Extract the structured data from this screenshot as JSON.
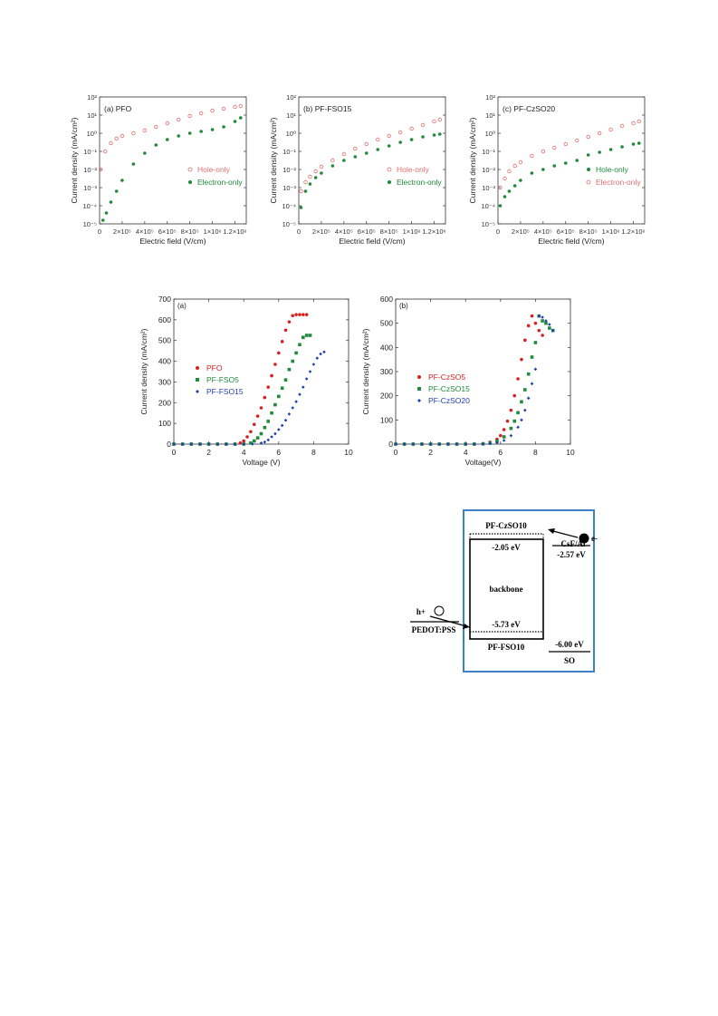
{
  "colors": {
    "hole": "#e07070",
    "electron": "#1f8a3a",
    "red": "#d62020",
    "green": "#1f8a3a",
    "blue": "#2040b0",
    "frame": "#3b82c4"
  },
  "row1": {
    "x_ticks": [
      "0",
      "2×10⁵",
      "4×10⁵",
      "6×10⁵",
      "8×10⁵",
      "1×10⁶",
      "1.2×10⁶"
    ],
    "y_ticks": [
      "10²",
      "10¹",
      "10⁰",
      "10⁻¹",
      "10⁻²",
      "10⁻³",
      "10⁻⁴",
      "10⁻⁵"
    ],
    "xlabel": "Electric field (V/cm)",
    "ylabel": "Current density (mA/cm²)"
  },
  "chart_data": [
    {
      "type": "scatter",
      "panel": "(a) PFO",
      "xlabel": "Electric field (V/cm)",
      "ylabel": "Current density (mA/cm²)",
      "xlim": [
        0,
        1300000
      ],
      "ylim": [
        -5,
        2
      ],
      "y_scale": "log",
      "legend_position": "right",
      "series": [
        {
          "name": "Hole-only",
          "marker": "open-circle",
          "color": "#e07070",
          "x": [
            10000,
            50000,
            100000,
            150000,
            200000,
            300000,
            400000,
            500000,
            600000,
            700000,
            800000,
            900000,
            1000000,
            1100000,
            1200000,
            1250000
          ],
          "y": [
            -2.0,
            -1.0,
            -0.55,
            -0.3,
            -0.15,
            0.0,
            0.15,
            0.35,
            0.55,
            0.75,
            0.95,
            1.1,
            1.25,
            1.35,
            1.45,
            1.5
          ]
        },
        {
          "name": "Electron-only",
          "marker": "filled-circle",
          "color": "#1f8a3a",
          "x": [
            30000,
            60000,
            100000,
            150000,
            200000,
            300000,
            400000,
            500000,
            600000,
            700000,
            800000,
            900000,
            1000000,
            1100000,
            1200000,
            1250000
          ],
          "y": [
            -4.8,
            -4.4,
            -3.8,
            -3.2,
            -2.6,
            -1.7,
            -1.1,
            -0.65,
            -0.35,
            -0.15,
            0.0,
            0.1,
            0.2,
            0.35,
            0.65,
            0.85
          ]
        }
      ]
    },
    {
      "type": "scatter",
      "panel": "(b) PF-FSO15",
      "xlabel": "Electric field (V/cm)",
      "ylabel": "Current density (mA/cm²)",
      "xlim": [
        0,
        1300000
      ],
      "ylim": [
        -5,
        2
      ],
      "y_scale": "log",
      "legend_position": "right",
      "series": [
        {
          "name": "Hole-only",
          "marker": "open-circle",
          "color": "#e07070",
          "x": [
            20000,
            60000,
            100000,
            150000,
            200000,
            300000,
            400000,
            500000,
            600000,
            700000,
            800000,
            900000,
            1000000,
            1100000,
            1200000,
            1250000
          ],
          "y": [
            -3.2,
            -2.7,
            -2.4,
            -2.1,
            -1.85,
            -1.5,
            -1.15,
            -0.85,
            -0.6,
            -0.35,
            -0.15,
            0.05,
            0.25,
            0.45,
            0.65,
            0.75
          ]
        },
        {
          "name": "Electron-only",
          "marker": "filled-circle",
          "color": "#1f8a3a",
          "x": [
            20000,
            60000,
            100000,
            150000,
            200000,
            300000,
            400000,
            500000,
            600000,
            700000,
            800000,
            900000,
            1000000,
            1100000,
            1200000,
            1250000
          ],
          "y": [
            -4.1,
            -3.2,
            -2.8,
            -2.45,
            -2.2,
            -1.8,
            -1.5,
            -1.3,
            -1.1,
            -0.9,
            -0.7,
            -0.5,
            -0.35,
            -0.2,
            -0.1,
            -0.05
          ]
        }
      ]
    },
    {
      "type": "scatter",
      "panel": "(c) PF-CzSO20",
      "xlabel": "Electric field (V/cm)",
      "ylabel": "Current density (mA/cm²)",
      "xlim": [
        0,
        1300000
      ],
      "ylim": [
        -5,
        2
      ],
      "y_scale": "log",
      "legend_position": "right",
      "series": [
        {
          "name": "Hole-only",
          "marker": "filled-circle",
          "color": "#1f8a3a",
          "x": [
            20000,
            60000,
            100000,
            150000,
            200000,
            300000,
            400000,
            500000,
            600000,
            700000,
            800000,
            900000,
            1000000,
            1100000,
            1200000,
            1250000
          ],
          "y": [
            -4.0,
            -3.5,
            -3.2,
            -2.9,
            -2.6,
            -2.2,
            -2.0,
            -1.8,
            -1.65,
            -1.5,
            -1.2,
            -1.05,
            -0.9,
            -0.75,
            -0.6,
            -0.55
          ]
        },
        {
          "name": "Electron-only",
          "marker": "open-circle",
          "color": "#e07070",
          "x": [
            20000,
            60000,
            100000,
            150000,
            200000,
            300000,
            400000,
            500000,
            600000,
            700000,
            800000,
            900000,
            1000000,
            1100000,
            1200000,
            1250000
          ],
          "y": [
            -3.0,
            -2.5,
            -2.1,
            -1.8,
            -1.6,
            -1.25,
            -1.0,
            -0.8,
            -0.6,
            -0.4,
            -0.2,
            0.0,
            0.2,
            0.4,
            0.55,
            0.65
          ]
        }
      ]
    },
    {
      "type": "scatter",
      "panel": "(a)",
      "xlabel": "Voltage (V)",
      "ylabel": "Current density (mA/cm²)",
      "xlim": [
        0,
        10
      ],
      "ylim": [
        0,
        700
      ],
      "x_ticks": [
        "0",
        "2",
        "4",
        "6",
        "8",
        "10"
      ],
      "y_ticks": [
        "0",
        "100",
        "200",
        "300",
        "400",
        "500",
        "600",
        "700"
      ],
      "legend_position": "left-middle",
      "series": [
        {
          "name": "PFO",
          "marker": "circle",
          "color": "#d62020",
          "x": [
            0,
            0.5,
            1,
            1.5,
            2,
            2.5,
            3,
            3.5,
            3.8,
            4.0,
            4.2,
            4.4,
            4.6,
            4.8,
            5.0,
            5.2,
            5.4,
            5.6,
            5.8,
            6.0,
            6.2,
            6.4,
            6.6,
            6.8,
            7.0,
            7.2,
            7.4,
            7.6
          ],
          "y": [
            0,
            0,
            0,
            0,
            0,
            0,
            0,
            0,
            5,
            15,
            35,
            60,
            95,
            135,
            175,
            225,
            275,
            330,
            385,
            440,
            495,
            550,
            590,
            620,
            625,
            625,
            625,
            625
          ]
        },
        {
          "name": "PF-FSO5",
          "marker": "square",
          "color": "#1f8a3a",
          "x": [
            0,
            0.5,
            1,
            1.5,
            2,
            2.5,
            3,
            3.5,
            4,
            4.4,
            4.6,
            4.8,
            5.0,
            5.2,
            5.4,
            5.6,
            5.8,
            6.0,
            6.2,
            6.4,
            6.6,
            6.8,
            7.0,
            7.2,
            7.4,
            7.6,
            7.8
          ],
          "y": [
            0,
            0,
            0,
            0,
            0,
            0,
            0,
            0,
            0,
            5,
            15,
            30,
            50,
            80,
            110,
            150,
            190,
            230,
            270,
            310,
            360,
            400,
            440,
            480,
            515,
            525,
            525
          ]
        },
        {
          "name": "PF-FSO15",
          "marker": "diamond",
          "color": "#2040b0",
          "x": [
            0,
            0.5,
            1,
            1.5,
            2,
            2.5,
            3,
            3.5,
            4,
            4.5,
            5.0,
            5.2,
            5.4,
            5.6,
            5.8,
            6.0,
            6.2,
            6.4,
            6.6,
            6.8,
            7.0,
            7.2,
            7.4,
            7.6,
            7.8,
            8.0,
            8.2,
            8.4,
            8.6
          ],
          "y": [
            0,
            0,
            0,
            0,
            0,
            0,
            0,
            0,
            0,
            0,
            5,
            10,
            20,
            35,
            50,
            70,
            90,
            115,
            145,
            175,
            205,
            240,
            275,
            315,
            350,
            385,
            415,
            435,
            445
          ]
        }
      ]
    },
    {
      "type": "scatter",
      "panel": "(b)",
      "xlabel": "Voltage(V)",
      "ylabel": "Current density (mA/cm²)",
      "xlim": [
        0,
        10
      ],
      "ylim": [
        0,
        600
      ],
      "x_ticks": [
        "0",
        "2",
        "4",
        "6",
        "8",
        "10"
      ],
      "y_ticks": [
        "0",
        "100",
        "200",
        "300",
        "400",
        "500",
        "600"
      ],
      "legend_position": "left-middle",
      "series": [
        {
          "name": "PF-CzSO5",
          "marker": "circle",
          "color": "#d62020",
          "x": [
            0,
            0.5,
            1,
            1.5,
            2,
            2.5,
            3,
            3.5,
            4,
            4.5,
            5.0,
            5.4,
            5.8,
            6.0,
            6.2,
            6.4,
            6.6,
            6.8,
            7.0,
            7.2,
            7.4,
            7.6,
            7.8,
            8.0,
            8.2,
            8.4
          ],
          "y": [
            0,
            0,
            0,
            0,
            0,
            0,
            0,
            0,
            0,
            0,
            2,
            8,
            20,
            35,
            60,
            95,
            140,
            200,
            270,
            350,
            430,
            490,
            530,
            500,
            470,
            450
          ]
        },
        {
          "name": "PF-CzSO15",
          "marker": "square",
          "color": "#1f8a3a",
          "x": [
            0,
            0.5,
            1,
            1.5,
            2,
            2.5,
            3,
            3.5,
            4,
            4.5,
            5.0,
            5.4,
            5.8,
            6.2,
            6.6,
            6.8,
            7.0,
            7.2,
            7.4,
            7.6,
            7.8,
            8.0,
            8.2,
            8.4,
            8.6,
            8.8,
            9.0
          ],
          "y": [
            0,
            0,
            0,
            0,
            0,
            0,
            0,
            0,
            0,
            0,
            1,
            4,
            12,
            30,
            65,
            95,
            130,
            175,
            225,
            290,
            360,
            420,
            530,
            510,
            500,
            480,
            470
          ]
        },
        {
          "name": "PF-CzSO20",
          "marker": "diamond",
          "color": "#2040b0",
          "x": [
            0,
            0.5,
            1,
            1.5,
            2,
            2.5,
            3,
            3.5,
            4,
            4.5,
            5.0,
            5.4,
            5.8,
            6.2,
            6.6,
            7.0,
            7.2,
            7.4,
            7.6,
            7.8,
            8.0,
            8.2,
            8.4,
            8.6,
            8.8,
            9.0
          ],
          "y": [
            0,
            0,
            0,
            0,
            0,
            0,
            0,
            0,
            0,
            0,
            0,
            2,
            6,
            15,
            35,
            70,
            100,
            140,
            190,
            250,
            310,
            530,
            525,
            510,
            495,
            470
          ]
        }
      ]
    }
  ],
  "diagram": {
    "top_label": "PF-CzSO10",
    "lumo": "-2.05 eV",
    "center": "backbone",
    "homo": "-5.73 eV",
    "bottom_label": "PF-FSO10",
    "cathode_level": "-2.57 eV",
    "cathode": "CsF/Al",
    "electron": "e-",
    "hole": "h+",
    "anode": "PEDOT:PSS",
    "so_level": "-6.00 eV",
    "so": "SO"
  }
}
